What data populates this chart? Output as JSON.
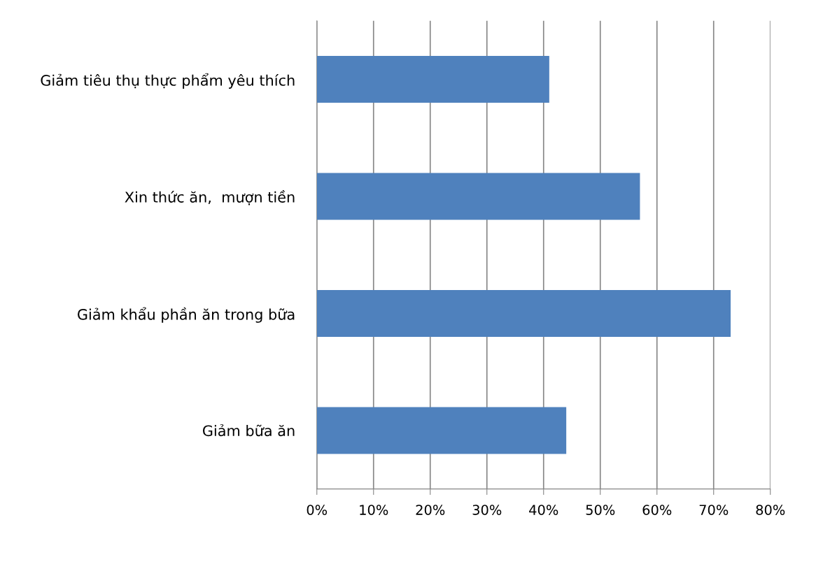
{
  "chart_data": {
    "type": "bar",
    "orientation": "horizontal",
    "categories": [
      "Giảm tiêu thụ thực phẩm yêu thích",
      "Xin thức ăn,  mượn tiền",
      "Giảm khẩu phần ăn trong bữa",
      "Giảm bữa ăn"
    ],
    "values": [
      41,
      57,
      73,
      44
    ],
    "color": "#4f81bd",
    "xlim": [
      0,
      80
    ],
    "xticks": [
      {
        "value": 0,
        "label": "0%"
      },
      {
        "value": 10,
        "label": "10%"
      },
      {
        "value": 20,
        "label": "20%"
      },
      {
        "value": 30,
        "label": "30%"
      },
      {
        "value": 40,
        "label": "40%"
      },
      {
        "value": 50,
        "label": "50%"
      },
      {
        "value": 60,
        "label": "60%"
      },
      {
        "value": 70,
        "label": "70%"
      },
      {
        "value": 80,
        "label": "80%"
      }
    ],
    "grid": "x"
  }
}
